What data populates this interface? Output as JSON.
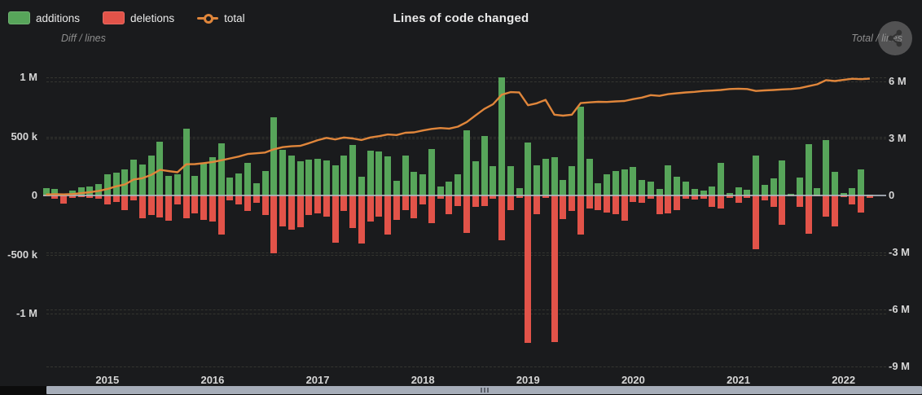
{
  "header": {
    "title": "Lines of code changed"
  },
  "colors": {
    "background": "#1a1b1d",
    "additions": "#57a55a",
    "deletions": "#e25349",
    "total": "#e0863b",
    "zero_line": "#b0b6c1",
    "scrollbar": "#a6adb9",
    "tick_text": "#d6d6d6"
  },
  "chart_data": {
    "type": "bar+line",
    "title": "Lines of code changed",
    "x_interval": "month",
    "x_start_month": "2014-06",
    "x_tick_labels": [
      "2015",
      "2016",
      "2017",
      "2018",
      "2019",
      "2020",
      "2021",
      "2022"
    ],
    "x_tick_month_index": [
      7,
      19,
      31,
      43,
      55,
      67,
      79,
      91
    ],
    "legend_position": "top-left",
    "grid": "dashed horizontal",
    "left_axis": {
      "caption": "Diff / lines",
      "range": [
        -1500000,
        1150000
      ],
      "ticks": [
        {
          "label": "1 M",
          "value": 1000000
        },
        {
          "label": "500 k",
          "value": 500000
        },
        {
          "label": "0",
          "value": 0
        },
        {
          "label": "-500 k",
          "value": -500000
        },
        {
          "label": "-1 M",
          "value": -1000000
        }
      ]
    },
    "right_axis": {
      "caption": "Total / lines",
      "range": [
        -9500000,
        6900000
      ],
      "ticks": [
        {
          "label": "6 M",
          "value": 6000000
        },
        {
          "label": "3 M",
          "value": 3000000
        },
        {
          "label": "0",
          "value": 0
        },
        {
          "label": "-3 M",
          "value": -3000000
        },
        {
          "label": "-6 M",
          "value": -6000000
        },
        {
          "label": "-9 M",
          "value": -9000000
        }
      ]
    },
    "series": [
      {
        "name": "additions",
        "type": "bar",
        "axis": "left",
        "color": "#57a55a",
        "values": [
          60000,
          57000,
          16000,
          39000,
          67000,
          74000,
          99000,
          177000,
          196000,
          219000,
          304000,
          265000,
          339000,
          458000,
          164000,
          180000,
          565000,
          165000,
          269000,
          324000,
          441000,
          152000,
          186000,
          276000,
          103000,
          207000,
          663000,
          386000,
          338000,
          290000,
          303000,
          310000,
          295000,
          255000,
          338000,
          427000,
          158000,
          382000,
          372000,
          331000,
          124000,
          338000,
          198000,
          179000,
          393000,
          74000,
          115000,
          182000,
          555000,
          292000,
          503000,
          248000,
          1000000,
          248000,
          62000,
          450000,
          255000,
          310000,
          322000,
          131000,
          248000,
          750000,
          310000,
          103000,
          179000,
          205000,
          223000,
          239000,
          131000,
          115000,
          55000,
          257000,
          159000,
          115000,
          55000,
          39000,
          78000,
          273000,
          21000,
          67000,
          50000,
          338000,
          90000,
          143000,
          300000,
          16000,
          154000,
          434000,
          62000,
          467000,
          198000,
          21000,
          62000,
          221000,
          8000
        ]
      },
      {
        "name": "deletions",
        "type": "bar",
        "axis": "left",
        "color": "#e25349",
        "values": [
          -10000,
          -28000,
          -67000,
          -18000,
          -14000,
          -23000,
          -28000,
          -76000,
          -53000,
          -122000,
          -41000,
          -196000,
          -168000,
          -187000,
          -217000,
          -78000,
          -190000,
          -152000,
          -207000,
          -224000,
          -331000,
          -41000,
          -76000,
          -133000,
          -64000,
          -168000,
          -490000,
          -262000,
          -290000,
          -270000,
          -165000,
          -150000,
          -180000,
          -400000,
          -133000,
          -276000,
          -404000,
          -221000,
          -180000,
          -330000,
          -210000,
          -122000,
          -191000,
          -76000,
          -237000,
          -30000,
          -156000,
          -87000,
          -318000,
          -99000,
          -87000,
          -30000,
          -377000,
          -122000,
          -23000,
          -1250000,
          -161000,
          -23000,
          -1240000,
          -202000,
          -133000,
          -331000,
          -110000,
          -122000,
          -145000,
          -156000,
          -214000,
          -53000,
          -64000,
          -30000,
          -156000,
          -152000,
          -122000,
          -25000,
          -34000,
          -25000,
          -99000,
          -110000,
          -18000,
          -64000,
          -18000,
          -455000,
          -41000,
          -99000,
          -250000,
          -8000,
          -99000,
          -326000,
          -7000,
          -180000,
          -262000,
          -11000,
          -76000,
          -145000,
          -18000
        ]
      },
      {
        "name": "total",
        "type": "line",
        "axis": "right",
        "color": "#e0863b",
        "values": [
          50000,
          70000,
          55000,
          75000,
          120000,
          170000,
          240000,
          340000,
          480000,
          580000,
          840000,
          910000,
          1080000,
          1350000,
          1280000,
          1220000,
          1640000,
          1650000,
          1700000,
          1760000,
          1850000,
          1950000,
          2050000,
          2180000,
          2220000,
          2260000,
          2430000,
          2540000,
          2590000,
          2610000,
          2750000,
          2910000,
          3030000,
          2950000,
          3050000,
          3000000,
          2920000,
          3050000,
          3120000,
          3210000,
          3180000,
          3300000,
          3320000,
          3420000,
          3500000,
          3550000,
          3520000,
          3620000,
          3860000,
          4210000,
          4550000,
          4800000,
          5300000,
          5440000,
          5420000,
          4750000,
          4850000,
          5030000,
          4250000,
          4200000,
          4250000,
          4860000,
          4900000,
          4930000,
          4920000,
          4950000,
          4970000,
          5070000,
          5150000,
          5280000,
          5240000,
          5330000,
          5380000,
          5420000,
          5450000,
          5500000,
          5520000,
          5550000,
          5600000,
          5620000,
          5600000,
          5500000,
          5530000,
          5550000,
          5580000,
          5600000,
          5650000,
          5750000,
          5850000,
          6070000,
          6020000,
          6080000,
          6140000,
          6120000,
          6150000
        ]
      }
    ]
  },
  "scrollbar": {
    "present": true,
    "orientation": "horizontal"
  }
}
